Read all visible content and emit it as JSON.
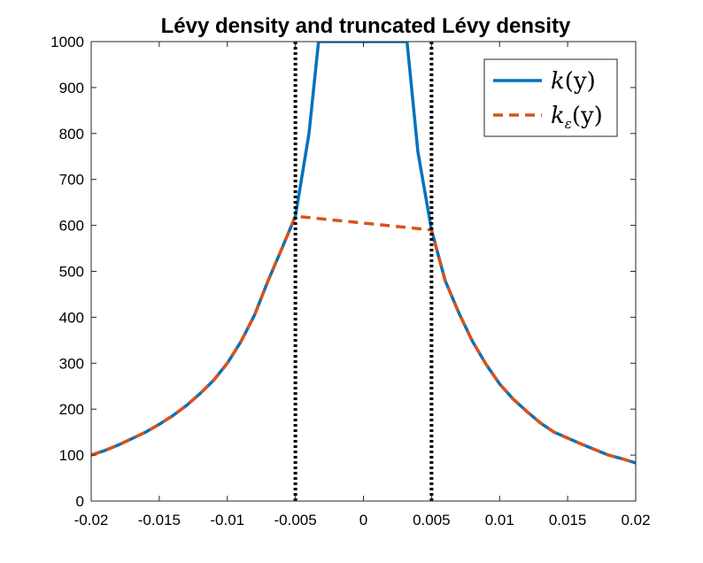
{
  "chart_data": {
    "type": "line",
    "title": "Lévy density and truncated Lévy density",
    "xlabel": "",
    "ylabel": "",
    "xlim": [
      -0.02,
      0.02
    ],
    "ylim": [
      0,
      1000
    ],
    "x_ticks": [
      -0.02,
      -0.015,
      -0.01,
      -0.005,
      0,
      0.005,
      0.01,
      0.015,
      0.02
    ],
    "x_tick_labels": [
      "-0.02",
      "-0.015",
      "-0.01",
      "-0.005",
      "0",
      "0.005",
      "0.01",
      "0.015",
      "0.02"
    ],
    "y_ticks": [
      0,
      100,
      200,
      300,
      400,
      500,
      600,
      700,
      800,
      900,
      1000
    ],
    "y_tick_labels": [
      "0",
      "100",
      "200",
      "300",
      "400",
      "500",
      "600",
      "700",
      "800",
      "900",
      "1000"
    ],
    "grid": false,
    "legend_position": "top-right",
    "series": [
      {
        "name": "k(y)",
        "legend_main": "k",
        "legend_sub": "",
        "legend_tail": "(y)",
        "color": "#0072BD",
        "style": "solid",
        "x": [
          -0.02,
          -0.019,
          -0.018,
          -0.017,
          -0.016,
          -0.015,
          -0.014,
          -0.013,
          -0.012,
          -0.011,
          -0.01,
          -0.009,
          -0.008,
          -0.007,
          -0.006,
          -0.005,
          -0.004,
          -0.0033,
          0.0032,
          0.004,
          0.005,
          0.006,
          0.007,
          0.008,
          0.009,
          0.01,
          0.011,
          0.012,
          0.013,
          0.014,
          0.015,
          0.016,
          0.017,
          0.018,
          0.019,
          0.02
        ],
        "y": [
          100,
          110,
          122,
          136,
          150,
          167,
          186,
          208,
          234,
          263,
          300,
          347,
          405,
          480,
          549,
          620,
          800,
          1000,
          1000,
          760,
          590,
          480,
          410,
          348,
          298,
          255,
          222,
          195,
          170,
          150,
          137,
          124,
          112,
          100,
          92,
          83
        ]
      },
      {
        "name": "k_ε(y)",
        "legend_main": "k",
        "legend_sub": "ε",
        "legend_tail": "(y)",
        "color": "#D95319",
        "style": "dashed",
        "x": [
          -0.02,
          -0.019,
          -0.018,
          -0.017,
          -0.016,
          -0.015,
          -0.014,
          -0.013,
          -0.012,
          -0.011,
          -0.01,
          -0.009,
          -0.008,
          -0.007,
          -0.006,
          -0.005,
          0.005,
          0.006,
          0.007,
          0.008,
          0.009,
          0.01,
          0.011,
          0.012,
          0.013,
          0.014,
          0.015,
          0.016,
          0.017,
          0.018,
          0.019,
          0.02
        ],
        "y": [
          100,
          110,
          122,
          136,
          150,
          167,
          186,
          208,
          234,
          263,
          300,
          347,
          405,
          480,
          549,
          620,
          590,
          480,
          410,
          348,
          298,
          255,
          222,
          195,
          170,
          150,
          137,
          124,
          112,
          100,
          92,
          83
        ]
      }
    ],
    "vertical_lines": [
      {
        "x": -0.005,
        "color": "#000000",
        "style": "dotted"
      },
      {
        "x": 0.005,
        "color": "#000000",
        "style": "dotted"
      }
    ]
  }
}
